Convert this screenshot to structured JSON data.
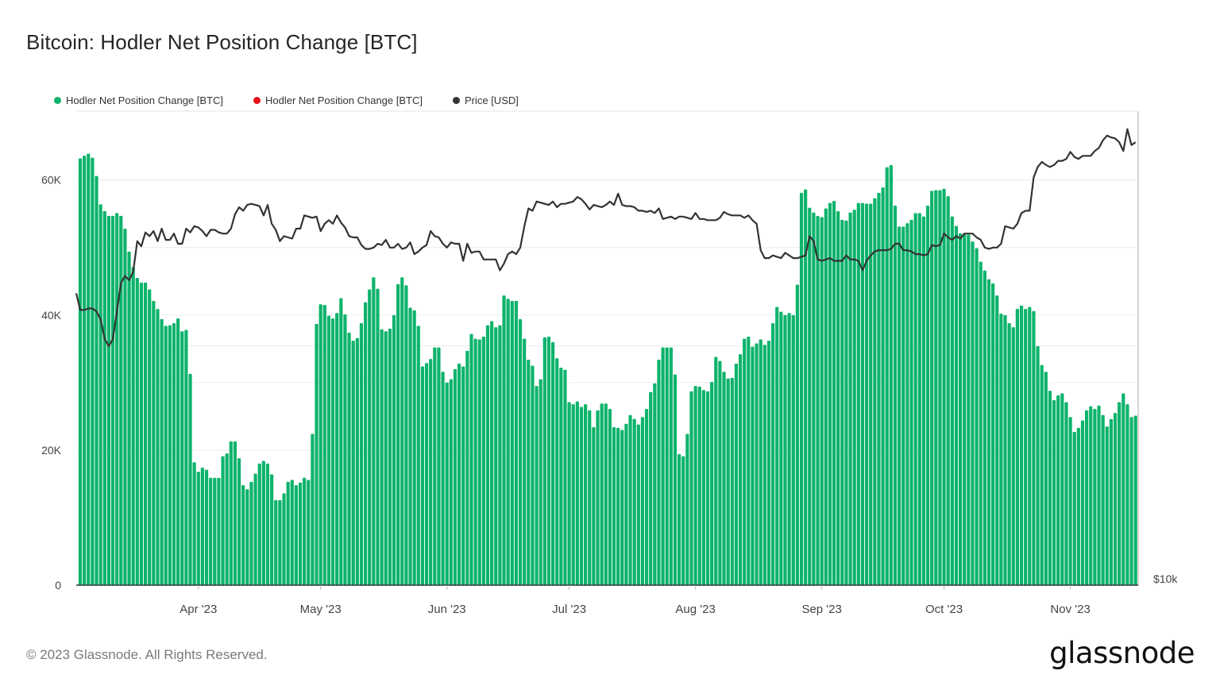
{
  "title": "Bitcoin: Hodler Net Position Change [BTC]",
  "footer": "© 2023 Glassnode. All Rights Reserved.",
  "logo": "glassnode",
  "chart_data": {
    "type": "bar",
    "title": "Bitcoin: Hodler Net Position Change [BTC]",
    "x_start_date": "2023-03-03",
    "x_frequency": "daily",
    "x_tick_labels": [
      "Apr '23",
      "May '23",
      "Jun '23",
      "Jul '23",
      "Aug '23",
      "Sep '23",
      "Oct '23",
      "Nov '23"
    ],
    "x_tick_dates": [
      "2023-04-01",
      "2023-05-01",
      "2023-06-01",
      "2023-07-01",
      "2023-08-01",
      "2023-09-01",
      "2023-10-01",
      "2023-11-01"
    ],
    "y_left": {
      "ticks": [
        0,
        20000,
        40000,
        60000
      ],
      "tick_labels": [
        "0",
        "20K",
        "40K",
        "60K"
      ],
      "range": [
        0,
        70200
      ],
      "grid_values": [
        20000,
        30000,
        40000,
        50000,
        60000
      ]
    },
    "y_right": {
      "scale": "log",
      "tick_labels": [
        "$10k"
      ],
      "range_usd": [
        10000,
        39500
      ],
      "grid_values_usd": [
        20000
      ]
    },
    "legend": {
      "placement": "top-left",
      "entries": [
        {
          "name": "Hodler Net Position Change [BTC]",
          "color": "#0db36b"
        },
        {
          "name": "Hodler Net Position Change [BTC]",
          "color": "#e8101a"
        },
        {
          "name": "Price [USD]",
          "color": "#333333"
        }
      ]
    },
    "series": [
      {
        "name": "Hodler Net Position Change [BTC]",
        "type": "bar",
        "axis": "left",
        "color": "#0db36b",
        "unit": "thousand BTC",
        "values": [
          63.2,
          63.6,
          63.9,
          63.3,
          60.6,
          56.4,
          55.4,
          54.7,
          54.7,
          55.1,
          54.7,
          52.8,
          49.4,
          47.1,
          45.5,
          44.8,
          44.8,
          43.8,
          42.1,
          40.9,
          39.4,
          38.4,
          38.5,
          38.8,
          39.5,
          37.6,
          37.8,
          31.3,
          18.2,
          16.8,
          17.4,
          17.1,
          15.9,
          15.9,
          15.9,
          19.1,
          19.5,
          21.3,
          21.3,
          18.8,
          14.8,
          14.2,
          15.3,
          16.5,
          18.0,
          18.4,
          18.0,
          16.4,
          12.6,
          12.6,
          13.6,
          15.3,
          15.6,
          14.8,
          15.2,
          15.9,
          15.6,
          22.4,
          38.7,
          41.6,
          41.5,
          39.9,
          39.5,
          40.3,
          42.5,
          40.1,
          37.4,
          36.2,
          36.6,
          38.8,
          41.9,
          43.8,
          45.6,
          43.9,
          37.9,
          37.6,
          38.0,
          40.0,
          44.6,
          45.6,
          44.4,
          41.1,
          40.7,
          38.4,
          32.4,
          32.9,
          33.5,
          35.2,
          35.2,
          31.6,
          30.0,
          30.5,
          32.0,
          32.8,
          32.4,
          34.7,
          37.2,
          36.5,
          36.4,
          36.8,
          38.5,
          39.1,
          38.2,
          38.5,
          42.9,
          42.4,
          42.1,
          42.1,
          39.4,
          36.5,
          33.4,
          32.5,
          29.5,
          30.5,
          36.7,
          36.8,
          36.0,
          33.6,
          32.2,
          31.9,
          27.1,
          26.8,
          27.2,
          26.4,
          26.8,
          25.9,
          23.4,
          25.9,
          26.9,
          26.9,
          26.1,
          23.4,
          23.3,
          23.0,
          23.9,
          25.2,
          24.6,
          23.8,
          24.9,
          26.1,
          28.6,
          29.9,
          33.4,
          35.2,
          35.2,
          35.2,
          31.2,
          19.4,
          19.1,
          22.4,
          28.7,
          29.5,
          29.4,
          28.9,
          28.7,
          30.1,
          33.8,
          33.2,
          31.6,
          30.6,
          30.7,
          32.8,
          34.2,
          36.5,
          36.8,
          35.3,
          35.8,
          36.4,
          35.6,
          36.2,
          38.8,
          41.2,
          40.5,
          40.0,
          40.3,
          40.0,
          44.5,
          58.1,
          58.6,
          55.9,
          55.2,
          54.7,
          54.5,
          55.8,
          56.6,
          56.9,
          55.4,
          54.1,
          54.0,
          55.2,
          55.6,
          56.6,
          56.6,
          56.5,
          56.5,
          57.3,
          58.1,
          58.9,
          61.9,
          62.2,
          56.2,
          53.1,
          53.1,
          53.6,
          54.1,
          55.1,
          55.1,
          54.6,
          56.2,
          58.4,
          58.5,
          58.5,
          58.7,
          57.6,
          54.6,
          53.2,
          52.1,
          52.0,
          51.9,
          50.9,
          49.9,
          47.9,
          46.6,
          45.3,
          44.7,
          42.9,
          40.2,
          40.0,
          38.8,
          38.2,
          40.9,
          41.4,
          40.9,
          41.2,
          40.6,
          35.4,
          32.6,
          31.6,
          28.8,
          27.4,
          28.1,
          28.4,
          27.1,
          24.9,
          22.7,
          23.3,
          24.4,
          25.9,
          26.5,
          26.1,
          26.6,
          25.2,
          23.5,
          24.6,
          25.5,
          27.1,
          28.4,
          26.8,
          24.9,
          25.1
        ]
      },
      {
        "name": "Hodler Net Position Change [BTC]",
        "type": "bar",
        "axis": "left",
        "color": "#e8101a",
        "unit": "thousand BTC",
        "values": []
      },
      {
        "name": "Price [USD]",
        "type": "line",
        "axis": "right",
        "color": "#333333",
        "unit": "thousand USD",
        "values": [
          22.2,
          22.2,
          22.3,
          22.3,
          22.1,
          21.6,
          20.4,
          20.0,
          20.4,
          22.1,
          24.0,
          24.5,
          24.2,
          24.8,
          27.1,
          26.7,
          27.8,
          27.5,
          27.9,
          27.1,
          28.1,
          27.2,
          27.2,
          27.7,
          26.9,
          26.9,
          28.1,
          27.8,
          28.3,
          28.2,
          27.9,
          27.5,
          28.0,
          28.0,
          27.8,
          27.7,
          27.7,
          28.1,
          29.3,
          29.9,
          29.6,
          30.1,
          30.2,
          30.1,
          30.0,
          29.2,
          30.1,
          28.5,
          28.0,
          27.1,
          27.5,
          27.4,
          27.3,
          28.1,
          28.1,
          29.2,
          29.1,
          29.0,
          29.1,
          27.9,
          28.5,
          28.8,
          28.5,
          29.2,
          28.6,
          28.2,
          27.5,
          27.4,
          27.4,
          26.8,
          26.5,
          26.5,
          26.6,
          26.9,
          26.8,
          27.2,
          26.6,
          26.6,
          26.9,
          26.5,
          26.6,
          27.0,
          26.1,
          26.3,
          26.6,
          26.8,
          27.9,
          27.5,
          27.4,
          26.9,
          26.6,
          27.0,
          26.9,
          26.9,
          25.6,
          26.9,
          26.2,
          26.3,
          26.3,
          25.7,
          25.7,
          25.7,
          25.7,
          24.9,
          25.4,
          26.1,
          26.3,
          26.1,
          26.6,
          28.3,
          29.8,
          29.6,
          30.4,
          30.3,
          30.2,
          30.1,
          30.4,
          29.9,
          30.2,
          30.2,
          30.3,
          30.4,
          30.8,
          30.6,
          30.2,
          29.7,
          30.1,
          30.0,
          29.9,
          30.1,
          30.4,
          30.1,
          31.1,
          30.1,
          30.0,
          30.0,
          29.9,
          29.6,
          29.6,
          29.5,
          29.6,
          29.4,
          29.8,
          28.9,
          29.0,
          29.1,
          28.9,
          29.1,
          29.1,
          29.0,
          28.9,
          29.4,
          28.9,
          28.9,
          28.8,
          28.8,
          28.8,
          29.0,
          29.5,
          29.3,
          29.2,
          29.2,
          29.2,
          29.0,
          29.2,
          28.8,
          28.5,
          26.4,
          25.8,
          25.8,
          26.0,
          25.9,
          25.8,
          26.2,
          26.0,
          25.8,
          25.8,
          25.9,
          26.0,
          27.5,
          27.1,
          25.7,
          25.6,
          25.7,
          25.8,
          25.6,
          25.6,
          25.6,
          26.0,
          25.7,
          25.7,
          25.6,
          24.9,
          25.6,
          26.0,
          26.3,
          26.4,
          26.4,
          26.4,
          26.5,
          26.9,
          26.9,
          26.4,
          26.4,
          26.3,
          26.1,
          26.1,
          26.0,
          26.1,
          26.8,
          26.7,
          26.8,
          27.7,
          27.4,
          27.2,
          27.5,
          27.3,
          27.7,
          27.7,
          27.7,
          27.4,
          27.2,
          26.6,
          26.5,
          26.6,
          26.6,
          26.9,
          28.3,
          28.2,
          28.1,
          28.5,
          29.4,
          29.6,
          29.6,
          32.6,
          33.6,
          34.1,
          33.8,
          33.6,
          33.8,
          34.2,
          34.2,
          34.4,
          35.1,
          34.6,
          34.4,
          34.7,
          34.7,
          34.7,
          35.2,
          35.5,
          36.3,
          36.8,
          36.6,
          36.5,
          36.1,
          35.2,
          37.5,
          35.8,
          36.1
        ]
      }
    ]
  }
}
